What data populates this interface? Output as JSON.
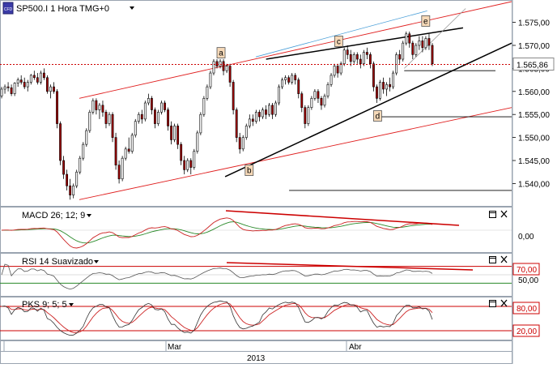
{
  "header": {
    "badge": "CFD",
    "title": "SP500.I 1 Hora TMG+0",
    "dropdown_icon": "triangle-down-icon"
  },
  "colors": {
    "up_candle": "#ffffff",
    "down_candle": "#a00000",
    "current_price_line": "#cc0000",
    "channel_line": "#e02020",
    "trend_line": "#000000",
    "sub_line": "#4a9fd8",
    "macd_line": "#cc2222",
    "macd_signal": "#2a8a2a",
    "rsi_line": "#555555",
    "level_line": "#cc0000",
    "level_line_low": "#2a8a2a",
    "tag_fill": "#f6d9b8"
  },
  "price_axis": {
    "ticks": [
      "1.575,00",
      "1.570,00",
      "1.565,00",
      "1.560,00",
      "1.555,00",
      "1.550,00",
      "1.545,00",
      "1.540,00"
    ],
    "current_price": "1.565,86"
  },
  "wave_labels": [
    "a",
    "b",
    "c",
    "d",
    "e"
  ],
  "panels": {
    "macd": {
      "title": "MACD 26; 12; 9",
      "tick": "0,00"
    },
    "rsi": {
      "title": "RSI 14 Suavizado",
      "ticks": [
        "70,00",
        "50,00"
      ]
    },
    "pks": {
      "title": "PKS 9; 5; 5",
      "ticks": [
        "80,00",
        "20,00"
      ]
    },
    "maximize_icon": "maximize-icon",
    "close_icon": "close-icon"
  },
  "time_axis": {
    "months": [
      "Mar",
      "Abr"
    ],
    "year": "2013"
  },
  "chart_data": {
    "type": "candlestick",
    "symbol": "SP500.I",
    "timeframe": "1 Hora",
    "y_range": [
      1535.5,
      1579.5
    ],
    "current_price": 1565.86,
    "candles": [
      [
        1559.0,
        1561.0,
        1558.5,
        1560.5
      ],
      [
        1560.5,
        1561.5,
        1559.5,
        1561.0
      ],
      [
        1561.0,
        1562.0,
        1560.0,
        1560.8
      ],
      [
        1560.8,
        1561.5,
        1559.0,
        1559.5
      ],
      [
        1559.5,
        1562.0,
        1559.0,
        1561.8
      ],
      [
        1561.8,
        1563.0,
        1561.0,
        1562.5
      ],
      [
        1562.5,
        1563.5,
        1561.5,
        1562.0
      ],
      [
        1562.0,
        1563.0,
        1560.5,
        1561.0
      ],
      [
        1561.0,
        1562.5,
        1560.0,
        1562.0
      ],
      [
        1562.0,
        1563.8,
        1561.5,
        1563.5
      ],
      [
        1563.5,
        1564.5,
        1562.5,
        1563.0
      ],
      [
        1563.0,
        1564.0,
        1561.5,
        1562.0
      ],
      [
        1562.0,
        1564.5,
        1561.5,
        1564.0
      ],
      [
        1564.0,
        1565.0,
        1562.5,
        1563.0
      ],
      [
        1563.0,
        1563.5,
        1559.5,
        1560.0
      ],
      [
        1560.0,
        1561.5,
        1558.5,
        1561.0
      ],
      [
        1561.0,
        1562.0,
        1559.5,
        1560.0
      ],
      [
        1560.0,
        1560.5,
        1552.0,
        1553.0
      ],
      [
        1553.0,
        1553.5,
        1544.0,
        1545.0
      ],
      [
        1545.0,
        1546.0,
        1541.0,
        1542.0
      ],
      [
        1542.0,
        1543.0,
        1538.5,
        1539.5
      ],
      [
        1539.5,
        1541.0,
        1536.5,
        1537.5
      ],
      [
        1537.5,
        1540.0,
        1536.8,
        1539.5
      ],
      [
        1539.5,
        1543.0,
        1539.0,
        1542.5
      ],
      [
        1542.5,
        1546.0,
        1542.0,
        1545.5
      ],
      [
        1545.5,
        1549.0,
        1545.0,
        1548.5
      ],
      [
        1548.5,
        1552.0,
        1548.0,
        1551.5
      ],
      [
        1551.5,
        1556.0,
        1551.0,
        1555.5
      ],
      [
        1555.5,
        1558.5,
        1555.0,
        1558.0
      ],
      [
        1558.0,
        1558.5,
        1555.0,
        1556.0
      ],
      [
        1556.0,
        1557.5,
        1554.0,
        1557.0
      ],
      [
        1557.0,
        1558.0,
        1554.5,
        1555.5
      ],
      [
        1555.5,
        1556.0,
        1552.0,
        1553.0
      ],
      [
        1553.0,
        1555.5,
        1552.5,
        1555.0
      ],
      [
        1555.0,
        1555.5,
        1549.0,
        1550.0
      ],
      [
        1550.0,
        1551.0,
        1543.0,
        1544.0
      ],
      [
        1544.0,
        1545.0,
        1540.0,
        1541.0
      ],
      [
        1541.0,
        1546.0,
        1540.5,
        1545.5
      ],
      [
        1545.5,
        1548.0,
        1545.0,
        1547.5
      ],
      [
        1547.5,
        1550.0,
        1546.5,
        1547.0
      ],
      [
        1547.0,
        1551.0,
        1546.5,
        1550.5
      ],
      [
        1550.5,
        1554.0,
        1550.0,
        1553.5
      ],
      [
        1553.5,
        1555.5,
        1553.0,
        1555.0
      ],
      [
        1555.0,
        1556.0,
        1553.0,
        1554.0
      ],
      [
        1554.0,
        1558.0,
        1553.5,
        1557.5
      ],
      [
        1557.5,
        1559.5,
        1557.0,
        1558.5
      ],
      [
        1558.5,
        1559.0,
        1555.0,
        1556.0
      ],
      [
        1556.0,
        1556.5,
        1552.0,
        1553.0
      ],
      [
        1553.0,
        1556.0,
        1552.5,
        1555.5
      ],
      [
        1555.5,
        1558.0,
        1555.0,
        1557.5
      ],
      [
        1557.5,
        1558.0,
        1555.5,
        1556.0
      ],
      [
        1556.0,
        1556.5,
        1551.5,
        1552.5
      ],
      [
        1552.5,
        1553.5,
        1548.5,
        1549.5
      ],
      [
        1549.5,
        1553.0,
        1549.0,
        1552.5
      ],
      [
        1552.5,
        1553.0,
        1547.5,
        1548.5
      ],
      [
        1548.5,
        1549.0,
        1544.0,
        1545.0
      ],
      [
        1545.0,
        1546.0,
        1542.0,
        1543.0
      ],
      [
        1543.0,
        1545.5,
        1542.5,
        1545.0
      ],
      [
        1545.0,
        1545.5,
        1542.0,
        1543.5
      ],
      [
        1543.5,
        1547.5,
        1543.0,
        1547.0
      ],
      [
        1547.0,
        1551.5,
        1546.5,
        1551.0
      ],
      [
        1551.0,
        1555.5,
        1550.5,
        1555.0
      ],
      [
        1555.0,
        1559.0,
        1554.5,
        1558.5
      ],
      [
        1558.5,
        1561.5,
        1558.0,
        1561.0
      ],
      [
        1561.0,
        1564.5,
        1560.5,
        1564.0
      ],
      [
        1564.0,
        1567.0,
        1563.5,
        1566.5
      ],
      [
        1566.5,
        1567.0,
        1565.0,
        1565.5
      ],
      [
        1565.5,
        1567.0,
        1565.0,
        1566.5
      ],
      [
        1566.5,
        1567.0,
        1563.5,
        1564.5
      ],
      [
        1564.5,
        1566.0,
        1564.0,
        1565.5
      ],
      [
        1565.5,
        1566.0,
        1561.0,
        1562.0
      ],
      [
        1562.0,
        1562.5,
        1555.0,
        1556.0
      ],
      [
        1556.0,
        1556.5,
        1549.0,
        1550.0
      ],
      [
        1550.0,
        1551.0,
        1546.5,
        1547.5
      ],
      [
        1547.5,
        1550.5,
        1547.0,
        1550.0
      ],
      [
        1550.0,
        1553.0,
        1549.5,
        1552.5
      ],
      [
        1552.5,
        1555.0,
        1552.0,
        1554.0
      ],
      [
        1554.0,
        1555.0,
        1552.5,
        1553.5
      ],
      [
        1553.5,
        1556.0,
        1553.0,
        1555.5
      ],
      [
        1555.5,
        1556.0,
        1553.5,
        1554.5
      ],
      [
        1554.5,
        1556.5,
        1554.0,
        1556.0
      ],
      [
        1556.0,
        1557.0,
        1554.0,
        1555.0
      ],
      [
        1555.0,
        1557.5,
        1554.5,
        1557.0
      ],
      [
        1557.0,
        1557.5,
        1554.0,
        1555.0
      ],
      [
        1555.0,
        1558.0,
        1554.5,
        1557.5
      ],
      [
        1557.5,
        1561.5,
        1557.0,
        1561.0
      ],
      [
        1561.0,
        1563.0,
        1560.5,
        1562.5
      ],
      [
        1562.5,
        1563.5,
        1561.5,
        1563.0
      ],
      [
        1563.0,
        1563.5,
        1561.5,
        1562.0
      ],
      [
        1562.0,
        1564.0,
        1561.5,
        1563.5
      ],
      [
        1563.5,
        1564.0,
        1561.5,
        1562.5
      ],
      [
        1562.5,
        1563.0,
        1558.5,
        1559.5
      ],
      [
        1559.5,
        1560.0,
        1555.5,
        1556.5
      ],
      [
        1556.5,
        1557.0,
        1552.0,
        1553.0
      ],
      [
        1553.0,
        1557.0,
        1552.5,
        1556.5
      ],
      [
        1556.5,
        1559.0,
        1556.0,
        1558.5
      ],
      [
        1558.5,
        1560.5,
        1558.0,
        1560.0
      ],
      [
        1560.0,
        1560.5,
        1557.5,
        1558.5
      ],
      [
        1558.5,
        1559.0,
        1556.0,
        1557.0
      ],
      [
        1557.0,
        1559.5,
        1556.5,
        1559.0
      ],
      [
        1559.0,
        1562.0,
        1558.5,
        1561.5
      ],
      [
        1561.5,
        1564.0,
        1561.0,
        1563.5
      ],
      [
        1563.5,
        1566.0,
        1563.0,
        1565.5
      ],
      [
        1565.5,
        1566.0,
        1563.0,
        1564.0
      ],
      [
        1564.0,
        1566.5,
        1563.5,
        1566.0
      ],
      [
        1566.0,
        1569.5,
        1565.5,
        1569.0
      ],
      [
        1569.0,
        1570.0,
        1567.0,
        1568.0
      ],
      [
        1568.0,
        1569.0,
        1565.5,
        1566.5
      ],
      [
        1566.5,
        1568.5,
        1566.0,
        1568.0
      ],
      [
        1568.0,
        1568.5,
        1566.0,
        1567.0
      ],
      [
        1567.0,
        1568.0,
        1565.0,
        1566.0
      ],
      [
        1566.0,
        1569.0,
        1565.5,
        1568.5
      ],
      [
        1568.5,
        1569.5,
        1567.0,
        1568.0
      ],
      [
        1568.0,
        1568.5,
        1565.0,
        1566.0
      ],
      [
        1566.0,
        1566.5,
        1560.0,
        1561.0
      ],
      [
        1561.0,
        1561.5,
        1557.5,
        1558.5
      ],
      [
        1558.5,
        1562.5,
        1558.0,
        1562.0
      ],
      [
        1562.0,
        1563.0,
        1559.5,
        1560.5
      ],
      [
        1560.5,
        1562.0,
        1559.0,
        1561.5
      ],
      [
        1561.5,
        1563.0,
        1560.0,
        1561.0
      ],
      [
        1561.0,
        1564.5,
        1560.5,
        1564.0
      ],
      [
        1564.0,
        1568.5,
        1563.5,
        1568.0
      ],
      [
        1568.0,
        1569.0,
        1566.0,
        1567.0
      ],
      [
        1567.0,
        1571.0,
        1566.5,
        1570.5
      ],
      [
        1570.5,
        1573.0,
        1570.0,
        1572.5
      ],
      [
        1572.5,
        1573.0,
        1569.5,
        1570.5
      ],
      [
        1570.5,
        1571.0,
        1567.0,
        1568.0
      ],
      [
        1568.0,
        1570.5,
        1567.5,
        1570.0
      ],
      [
        1570.0,
        1572.0,
        1569.0,
        1571.0
      ],
      [
        1571.0,
        1572.0,
        1568.5,
        1569.5
      ],
      [
        1569.5,
        1572.0,
        1569.0,
        1571.5
      ],
      [
        1571.5,
        1572.5,
        1569.0,
        1570.0
      ],
      [
        1570.0,
        1570.5,
        1565.5,
        1566.0
      ]
    ],
    "trendlines": [
      {
        "name": "channel-upper",
        "from": [
          0.155,
          1558.5
        ],
        "to": [
          1.0,
          1579.5
        ]
      },
      {
        "name": "channel-lower",
        "from": [
          0.155,
          1536.5
        ],
        "to": [
          1.0,
          1556.5
        ]
      },
      {
        "name": "support",
        "from": [
          0.44,
          1541.5
        ],
        "to": [
          1.0,
          1570.5
        ]
      },
      {
        "name": "resistance",
        "from": [
          0.52,
          1567.0
        ],
        "to": [
          0.905,
          1573.8
        ]
      }
    ],
    "levels": [
      1565.86,
      1564.5,
      1554.5,
      1538.5
    ],
    "rsi_levels": [
      70,
      50,
      30
    ],
    "pks_levels": [
      80,
      20
    ]
  }
}
